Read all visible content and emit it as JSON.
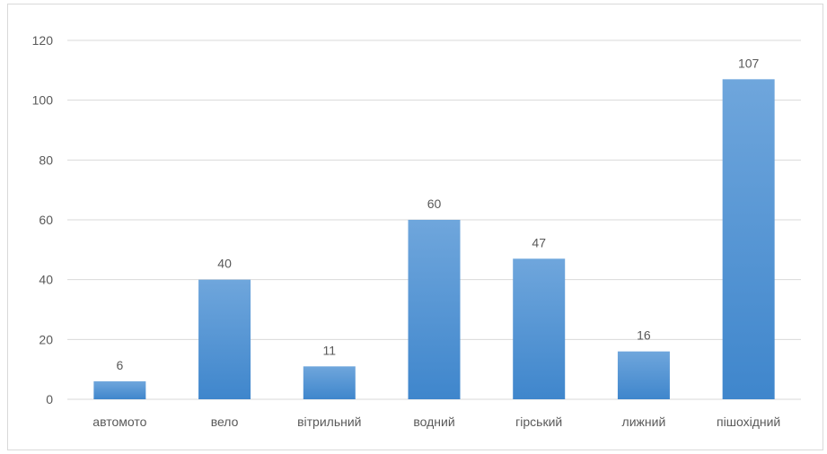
{
  "chart_data": {
    "type": "bar",
    "title": "",
    "xlabel": "",
    "ylabel": "",
    "categories": [
      "автомото",
      "вело",
      "вітрильний",
      "водний",
      "гірський",
      "лижний",
      "пішохідний"
    ],
    "values": [
      6,
      40,
      11,
      60,
      47,
      16,
      107
    ],
    "data_labels": [
      "6",
      "40",
      "11",
      "60",
      "47",
      "16",
      "107"
    ],
    "ylim": [
      0,
      120
    ],
    "yticks": [
      0,
      20,
      40,
      60,
      80,
      100,
      120
    ],
    "ytick_labels": [
      "0",
      "20",
      "40",
      "60",
      "80",
      "100",
      "120"
    ],
    "grid": true,
    "legend": "none",
    "colors": {
      "bar_top": "#6fa6dc",
      "bar_bottom": "#3f86cc",
      "grid": "#d9d9d9",
      "text": "#595959"
    }
  }
}
